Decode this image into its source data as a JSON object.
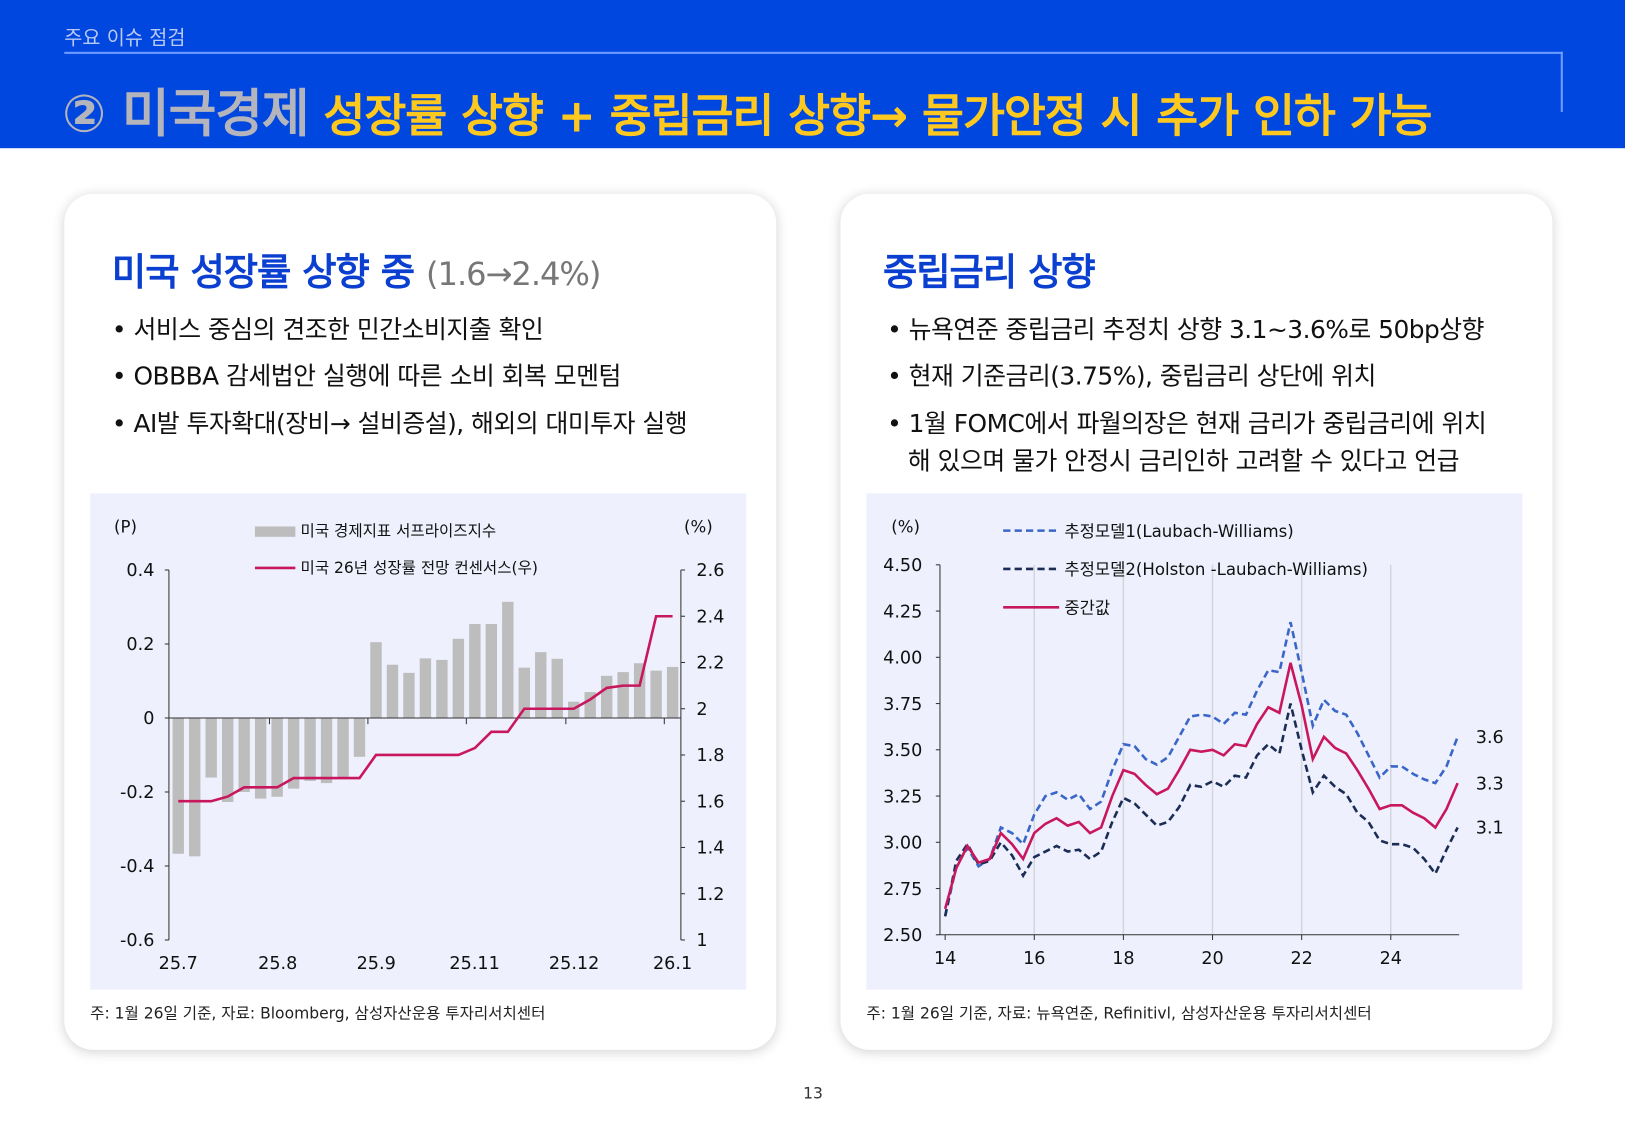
{
  "header": {
    "section": "주요 이슈 점검",
    "title_prefix": "② 미국경제",
    "title_main": "성장률 상향 + 중립금리 상향→ 물가안정 시 추가 인하 가능"
  },
  "left": {
    "heading": "미국 성장률 상향 중",
    "heading_sub": "(1.6→2.4%)",
    "bullets": [
      "• 서비스 중심의 견조한 민간소비지출 확인",
      "• OBBBA 감세법안 실행에 따른 소비 회복 모멘텀",
      "• AI발 투자확대(장비→ 설비증설), 해외의 대미투자 실행"
    ],
    "note": "주: 1월 26일 기준,  자료: Bloomberg, 삼성자산운용 투자리서치센터"
  },
  "right": {
    "heading": "중립금리 상향",
    "bullets": [
      "• 뉴욕연준 중립금리 추정치 상향 3.1~3.6%로 50bp상향",
      "• 현재 기준금리(3.75%), 중립금리 상단에 위치",
      "• 1월 FOMC에서 파월의장은 현재 금리가 중립금리에 위치",
      "해 있으며 물가 안정시 금리인하 고려할 수 있다고 언급"
    ],
    "note": "주: 1월 26일 기준,  자료: 뉴욕연준, Refinitivl, 삼성자산운용 투자리서치센터"
  },
  "page_number": "13",
  "chart_data": [
    {
      "type": "bar+line",
      "left_unit": "(P)",
      "right_unit": "(%)",
      "ylim": [
        -0.6,
        0.4
      ],
      "y_ticks": [
        "0.4",
        "0.2",
        "0",
        "-0.2",
        "-0.4",
        "-0.6"
      ],
      "y2lim": [
        1,
        2.6
      ],
      "y2_ticks": [
        "2.6",
        "2.4",
        "2.2",
        "2",
        "1.8",
        "1.6",
        "1.4",
        "1.2",
        "1"
      ],
      "x_ticks": [
        "25.7",
        "25.8",
        "25.9",
        "25.11",
        "25.12",
        "26.1"
      ],
      "series": [
        {
          "name": "미국 경제지표 서프라이즈지수",
          "type": "bar",
          "axis": "left",
          "color": "#bdbdbd",
          "values": [
            -0.367,
            -0.374,
            -0.161,
            -0.227,
            -0.2,
            -0.218,
            -0.213,
            -0.191,
            -0.17,
            -0.176,
            -0.16,
            -0.105,
            0.205,
            0.144,
            0.122,
            0.161,
            0.157,
            0.214,
            0.254,
            0.254,
            0.314,
            0.136,
            0.178,
            0.16,
            0.044,
            0.07,
            0.114,
            0.124,
            0.148,
            0.128,
            0.138
          ]
        },
        {
          "name": "미국 26년 성장률 전망 컨센서스(우)",
          "type": "line",
          "axis": "right",
          "color": "#c8175d",
          "values": [
            1.6,
            1.6,
            1.6,
            1.62,
            1.66,
            1.66,
            1.66,
            1.7,
            1.7,
            1.7,
            1.7,
            1.7,
            1.8,
            1.8,
            1.8,
            1.8,
            1.8,
            1.8,
            1.83,
            1.9,
            1.9,
            2.0,
            2.0,
            2.0,
            2.0,
            2.04,
            2.09,
            2.1,
            2.1,
            2.4,
            2.4
          ]
        }
      ]
    },
    {
      "type": "line",
      "unit": "(%)",
      "ylim": [
        2.5,
        4.5
      ],
      "y_ticks": [
        "4.50",
        "4.25",
        "4.00",
        "3.75",
        "3.50",
        "3.25",
        "3.00",
        "2.75",
        "2.50"
      ],
      "xlim": [
        14,
        25.75
      ],
      "x_ticks": [
        "14",
        "16",
        "18",
        "20",
        "22",
        "24"
      ],
      "grid": "vertical",
      "x_start": 14,
      "x_step": 0.25,
      "series": [
        {
          "name": "추정모델1(Laubach-Williams)",
          "style": "dashed",
          "color": "#3a66c8",
          "end_label": "3.6",
          "values": [
            2.6,
            2.87,
            2.97,
            2.87,
            2.91,
            3.08,
            3.05,
            2.99,
            3.15,
            3.25,
            3.27,
            3.23,
            3.26,
            3.18,
            3.22,
            3.39,
            3.53,
            3.52,
            3.45,
            3.42,
            3.46,
            3.57,
            3.68,
            3.69,
            3.68,
            3.64,
            3.7,
            3.69,
            3.82,
            3.93,
            3.92,
            4.19,
            3.92,
            3.63,
            3.77,
            3.71,
            3.69,
            3.59,
            3.47,
            3.35,
            3.41,
            3.41,
            3.37,
            3.34,
            3.32,
            3.41,
            3.57
          ]
        },
        {
          "name": "추정모델2(Holston -Laubach-Williams)",
          "style": "dashed",
          "color": "#1c2d55",
          "end_label": "3.1",
          "values": [
            2.6,
            2.9,
            2.99,
            2.88,
            2.9,
            3.0,
            2.93,
            2.82,
            2.92,
            2.95,
            2.98,
            2.95,
            2.96,
            2.91,
            2.95,
            3.11,
            3.24,
            3.21,
            3.15,
            3.09,
            3.11,
            3.19,
            3.31,
            3.3,
            3.33,
            3.3,
            3.36,
            3.35,
            3.47,
            3.53,
            3.48,
            3.75,
            3.5,
            3.27,
            3.36,
            3.3,
            3.26,
            3.16,
            3.11,
            3.01,
            2.99,
            2.99,
            2.97,
            2.91,
            2.83,
            2.96,
            3.08
          ]
        },
        {
          "name": "중간값",
          "style": "solid",
          "color": "#c8175d",
          "end_label": "3.3",
          "values": [
            2.64,
            2.86,
            2.98,
            2.89,
            2.91,
            3.05,
            2.99,
            2.91,
            3.05,
            3.1,
            3.13,
            3.09,
            3.11,
            3.05,
            3.08,
            3.25,
            3.39,
            3.37,
            3.31,
            3.26,
            3.29,
            3.39,
            3.5,
            3.49,
            3.5,
            3.47,
            3.53,
            3.52,
            3.64,
            3.73,
            3.7,
            3.97,
            3.74,
            3.45,
            3.57,
            3.51,
            3.48,
            3.39,
            3.29,
            3.18,
            3.2,
            3.2,
            3.16,
            3.13,
            3.08,
            3.18,
            3.32
          ]
        }
      ]
    }
  ]
}
